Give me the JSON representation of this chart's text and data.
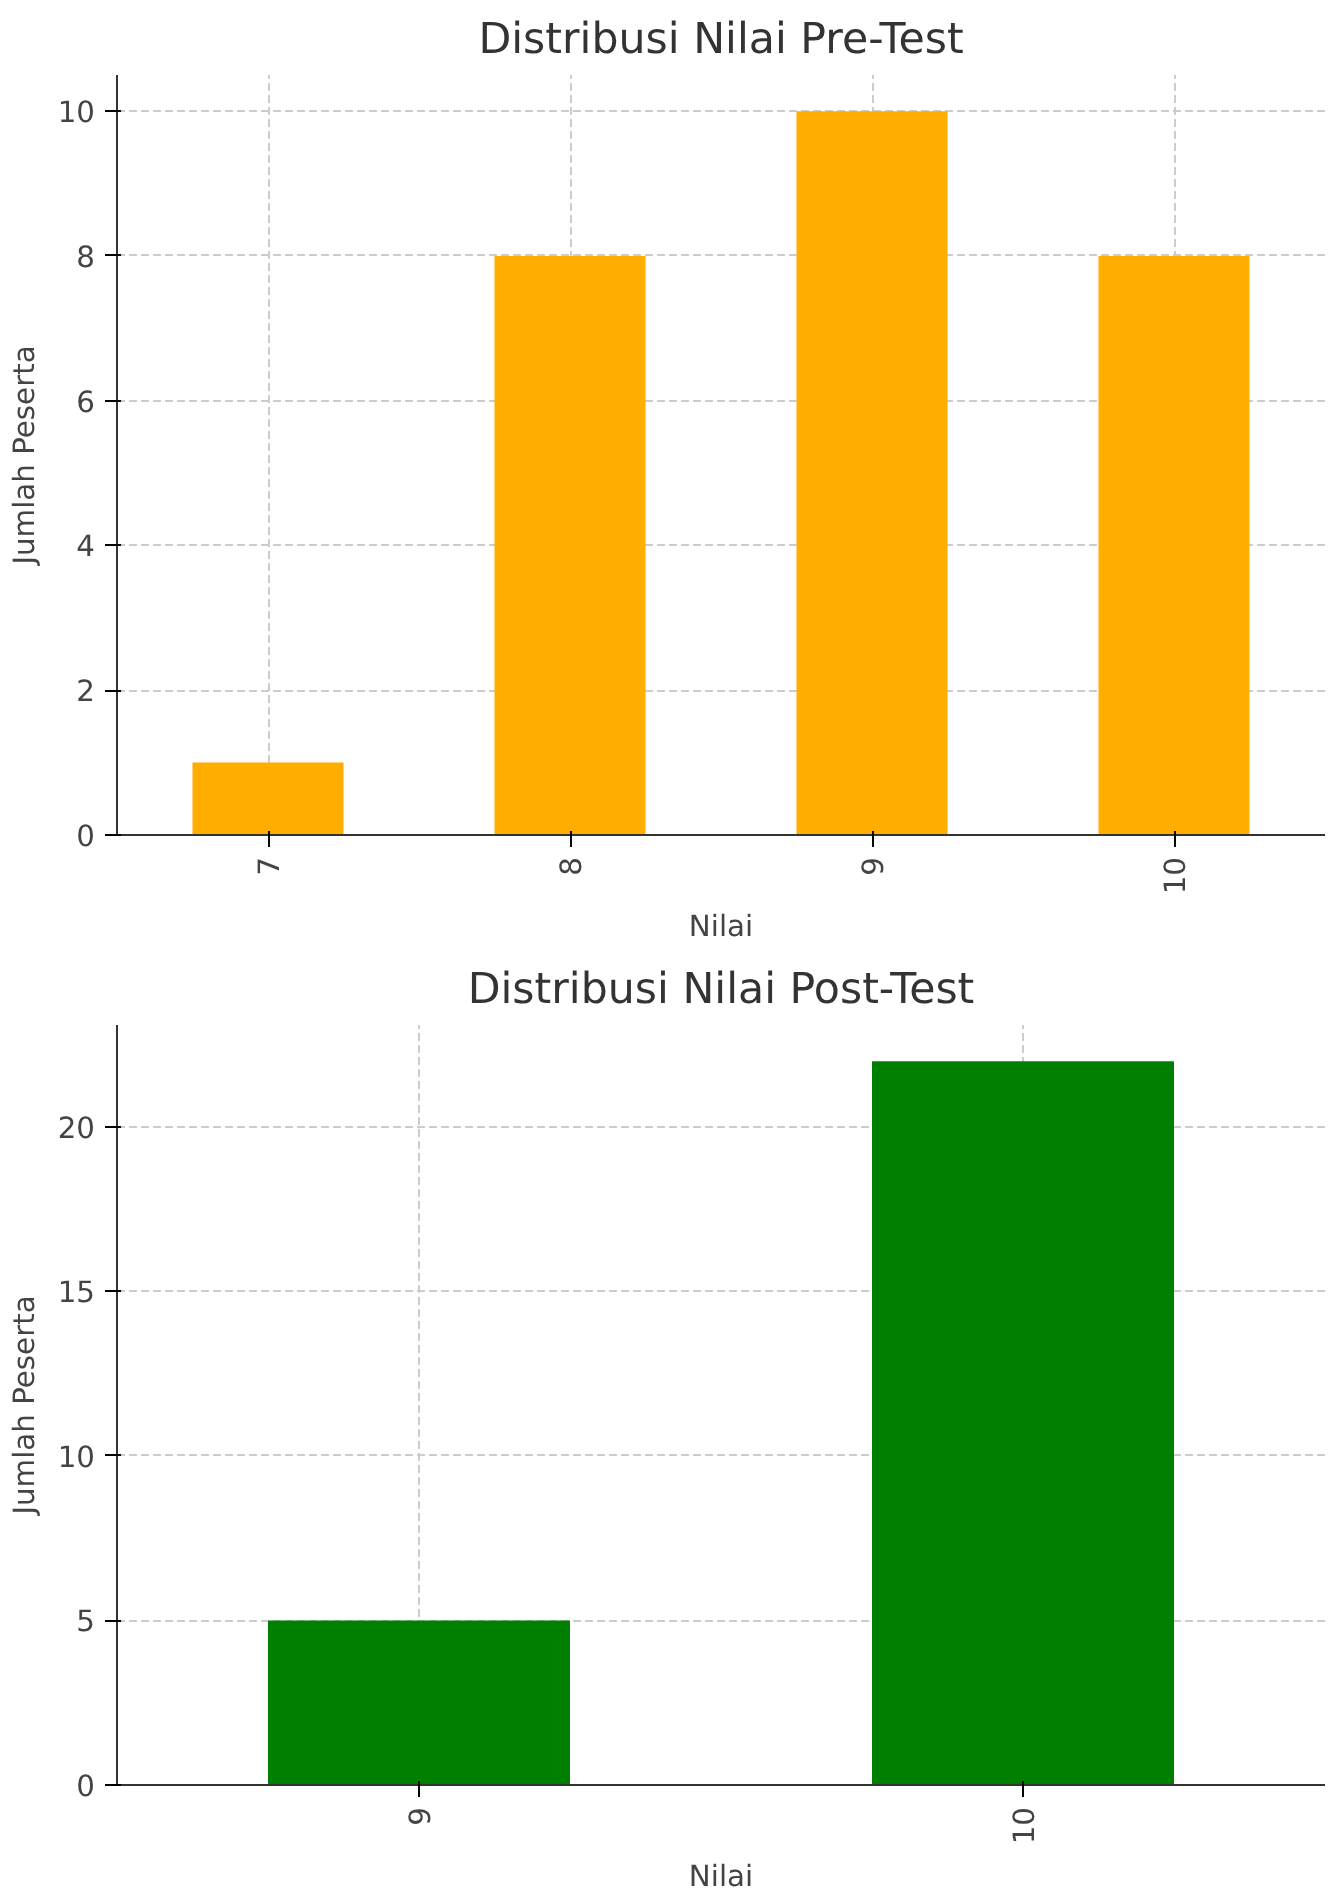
{
  "chart_data": [
    {
      "type": "bar",
      "title": "Distribusi Nilai Pre-Test",
      "xlabel": "Nilai",
      "ylabel": "Jumlah Peserta",
      "categories": [
        "7",
        "8",
        "9",
        "10"
      ],
      "values": [
        1,
        8,
        10,
        8
      ],
      "color": "#ffae00",
      "ylim": [
        0,
        10.5
      ],
      "yticks": [
        0,
        2,
        4,
        6,
        8,
        10
      ],
      "grid": true
    },
    {
      "type": "bar",
      "title": "Distribusi Nilai Post-Test",
      "xlabel": "Nilai",
      "ylabel": "Jumlah Peserta",
      "categories": [
        "9",
        "10"
      ],
      "values": [
        5,
        22
      ],
      "color": "#008000",
      "ylim": [
        0,
        23.1
      ],
      "yticks": [
        0,
        5,
        10,
        15,
        20
      ],
      "grid": true
    }
  ]
}
